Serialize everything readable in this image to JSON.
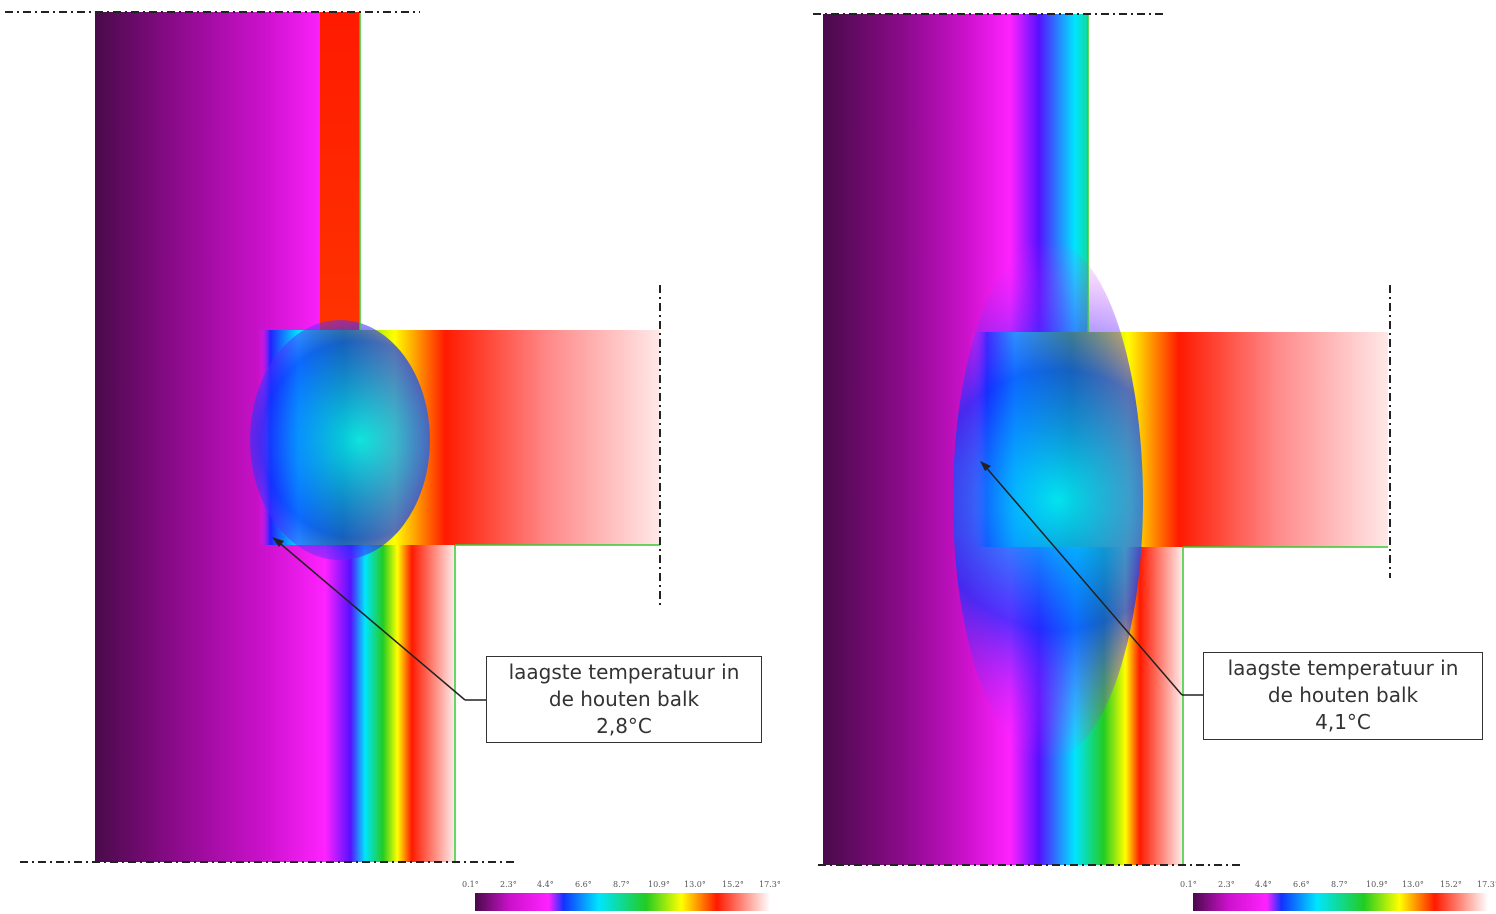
{
  "panels": [
    {
      "id": "left",
      "callout_lines": [
        "laagste temperatuur in",
        "de houten balk",
        "2,8°C"
      ],
      "lowest_temperature": "2,8°C"
    },
    {
      "id": "right",
      "callout_lines": [
        "laagste temperatuur in",
        "de houten balk",
        "4,1°C"
      ],
      "lowest_temperature": "4,1°C"
    }
  ],
  "scale": {
    "ticks": [
      "0.1°",
      "2.3°",
      "4.4°",
      "6.6°",
      "8.7°",
      "10.9°",
      "13.0°",
      "15.2°",
      "17.3°"
    ],
    "colors": [
      "#4a0a4a",
      "#cc11cc",
      "#ff22ff",
      "#1133ff",
      "#00e5ff",
      "#22cc22",
      "#ffff00",
      "#ff1a00",
      "#ffffff"
    ]
  }
}
